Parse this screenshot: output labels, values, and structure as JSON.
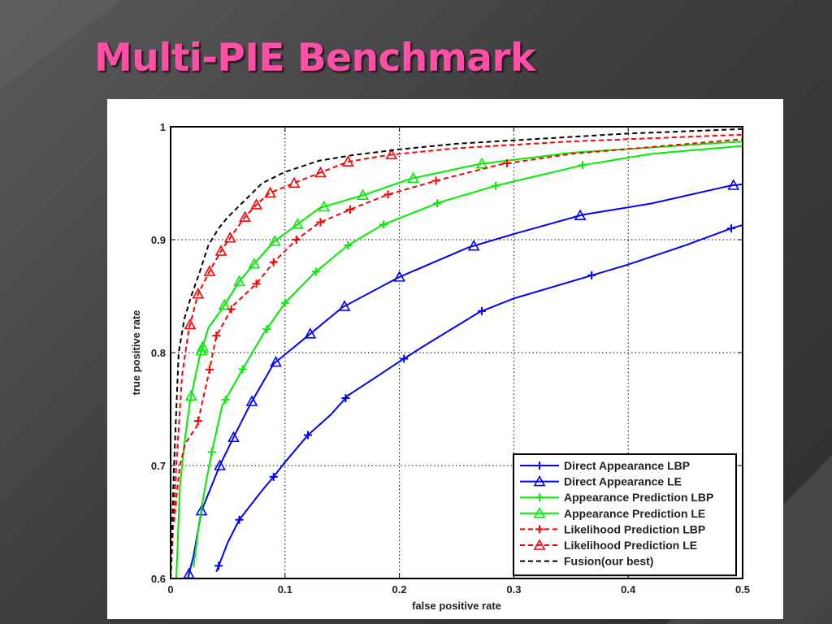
{
  "slide": {
    "title": "Multi-PIE Benchmark"
  },
  "chart_data": {
    "type": "line",
    "title": "",
    "xlabel": "false positive rate",
    "ylabel": "true positive rate",
    "xlim": [
      0,
      0.5
    ],
    "ylim": [
      0.6,
      1.0
    ],
    "xticks": [
      0,
      0.1,
      0.2,
      0.3,
      0.4,
      0.5
    ],
    "xtick_labels": [
      "0",
      "0.1",
      "0.2",
      "0.3",
      "0.4",
      "0.5"
    ],
    "yticks": [
      0.6,
      0.7,
      0.8,
      0.9,
      1.0
    ],
    "ytick_labels": [
      "0.6",
      "0.7",
      "0.8",
      "0.9",
      "1"
    ],
    "grid": true,
    "legend_position": "bottom-right",
    "series": [
      {
        "name": "Direct Appearance LBP",
        "color": "#0000ff",
        "dash": "solid",
        "marker": "plus",
        "x": [
          0.04,
          0.05,
          0.06,
          0.08,
          0.09,
          0.1,
          0.12,
          0.14,
          0.155,
          0.17,
          0.2,
          0.22,
          0.27,
          0.3,
          0.36,
          0.4,
          0.45,
          0.49,
          0.5
        ],
        "y": [
          0.606,
          0.632,
          0.652,
          0.678,
          0.69,
          0.703,
          0.727,
          0.745,
          0.762,
          0.772,
          0.792,
          0.805,
          0.836,
          0.848,
          0.866,
          0.878,
          0.895,
          0.91,
          0.913
        ],
        "markers_x": [
          0.042,
          0.06,
          0.09,
          0.12,
          0.153,
          0.204,
          0.272,
          0.368,
          0.49
        ]
      },
      {
        "name": "Direct Appearance LE",
        "color": "#0000ff",
        "dash": "solid",
        "marker": "triangle",
        "x": [
          0.015,
          0.02,
          0.027,
          0.035,
          0.043,
          0.055,
          0.07,
          0.09,
          0.12,
          0.15,
          0.2,
          0.26,
          0.3,
          0.36,
          0.42,
          0.49,
          0.5
        ],
        "y": [
          0.6,
          0.62,
          0.66,
          0.68,
          0.7,
          0.725,
          0.755,
          0.79,
          0.815,
          0.84,
          0.867,
          0.893,
          0.905,
          0.922,
          0.932,
          0.948,
          0.949
        ],
        "markers_x": [
          0.016,
          0.027,
          0.043,
          0.055,
          0.071,
          0.092,
          0.122,
          0.152,
          0.2,
          0.265,
          0.358,
          0.492
        ]
      },
      {
        "name": "Appearance Prediction LBP",
        "color": "#00ee00",
        "dash": "solid",
        "marker": "plus",
        "x": [
          0.02,
          0.025,
          0.03,
          0.036,
          0.045,
          0.06,
          0.08,
          0.1,
          0.125,
          0.155,
          0.185,
          0.235,
          0.285,
          0.36,
          0.42,
          0.5
        ],
        "y": [
          0.61,
          0.65,
          0.68,
          0.712,
          0.753,
          0.78,
          0.815,
          0.844,
          0.87,
          0.895,
          0.913,
          0.933,
          0.948,
          0.966,
          0.976,
          0.983
        ],
        "markers_x": [
          0.036,
          0.048,
          0.063,
          0.084,
          0.1,
          0.127,
          0.155,
          0.186,
          0.233,
          0.284,
          0.36
        ]
      },
      {
        "name": "Appearance Prediction LE",
        "color": "#00ee00",
        "dash": "solid",
        "marker": "triangle",
        "x": [
          0.005,
          0.008,
          0.012,
          0.017,
          0.025,
          0.033,
          0.045,
          0.06,
          0.075,
          0.09,
          0.11,
          0.13,
          0.17,
          0.21,
          0.27,
          0.35,
          0.5
        ],
        "y": [
          0.6,
          0.68,
          0.72,
          0.757,
          0.795,
          0.822,
          0.839,
          0.863,
          0.881,
          0.898,
          0.913,
          0.928,
          0.94,
          0.954,
          0.967,
          0.977,
          0.987
        ],
        "markers_x": [
          0.027,
          0.018,
          0.028,
          0.047,
          0.06,
          0.073,
          0.091,
          0.111,
          0.134,
          0.168,
          0.212,
          0.272
        ]
      },
      {
        "name": "Likelihood Prediction LBP",
        "color": "#ff0000",
        "dash": "dashed",
        "marker": "plus",
        "x": [
          0.003,
          0.008,
          0.013,
          0.023,
          0.033,
          0.04,
          0.055,
          0.075,
          0.09,
          0.11,
          0.13,
          0.16,
          0.19,
          0.235,
          0.29,
          0.35,
          0.5
        ],
        "y": [
          0.65,
          0.7,
          0.72,
          0.735,
          0.78,
          0.815,
          0.842,
          0.861,
          0.88,
          0.9,
          0.915,
          0.928,
          0.94,
          0.953,
          0.967,
          0.976,
          0.989
        ],
        "markers_x": [
          0.024,
          0.034,
          0.04,
          0.053,
          0.075,
          0.09,
          0.11,
          0.131,
          0.157,
          0.19,
          0.232,
          0.294
        ]
      },
      {
        "name": "Likelihood Prediction LE",
        "color": "#ff0000",
        "dash": "dashed",
        "marker": "triangle",
        "x": [
          0.0,
          0.005,
          0.01,
          0.016,
          0.024,
          0.034,
          0.044,
          0.055,
          0.065,
          0.075,
          0.086,
          0.11,
          0.13,
          0.155,
          0.19,
          0.25,
          0.35,
          0.5
        ],
        "y": [
          0.6,
          0.7,
          0.78,
          0.821,
          0.852,
          0.872,
          0.89,
          0.906,
          0.92,
          0.931,
          0.941,
          0.951,
          0.959,
          0.969,
          0.975,
          0.981,
          0.987,
          0.993
        ],
        "markers_x": [
          0.017,
          0.024,
          0.034,
          0.044,
          0.052,
          0.065,
          0.075,
          0.087,
          0.108,
          0.131,
          0.155,
          0.193
        ]
      },
      {
        "name": "Fusion(our best)",
        "color": "#000000",
        "dash": "dashed",
        "marker": "none",
        "x": [
          0.0,
          0.003,
          0.007,
          0.012,
          0.018,
          0.025,
          0.033,
          0.042,
          0.05,
          0.06,
          0.07,
          0.08,
          0.1,
          0.13,
          0.16,
          0.2,
          0.25,
          0.3,
          0.35,
          0.4,
          0.45,
          0.5
        ],
        "y": [
          0.6,
          0.7,
          0.8,
          0.83,
          0.85,
          0.87,
          0.895,
          0.91,
          0.92,
          0.93,
          0.94,
          0.95,
          0.96,
          0.97,
          0.975,
          0.98,
          0.985,
          0.988,
          0.991,
          0.994,
          0.996,
          0.998
        ]
      }
    ]
  }
}
